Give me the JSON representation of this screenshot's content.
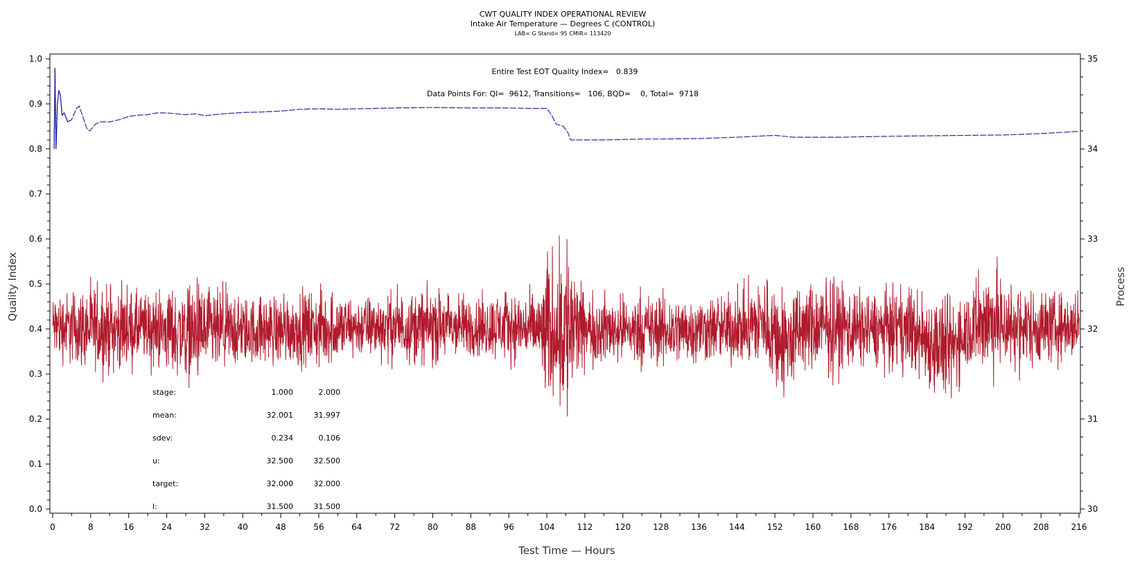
{
  "chart_data": {
    "type": "line",
    "title": "CWT QUALITY INDEX OPERATIONAL REVIEW",
    "subtitle": "Intake Air Temperature — Degrees C (CONTROL)",
    "subsubtitle": "LAB= G Stand= 95 CMIR= 113420",
    "annotation_qi": "Entire Test EOT Quality Index=   0.839",
    "annotation_points": "Data Points For: QI=  9612, Transitions=   106, BQD=    0, Total=  9718",
    "xlabel": "Test Time — Hours",
    "ylabel": "Quality Index",
    "y2label": "Process",
    "xlim": [
      0,
      216
    ],
    "ylim": [
      0,
      1.0
    ],
    "y2lim": [
      30,
      35
    ],
    "xticks": [
      "0",
      "8",
      "16",
      "24",
      "32",
      "40",
      "48",
      "56",
      "64",
      "72",
      "80",
      "88",
      "96",
      "104",
      "112",
      "120",
      "128",
      "136",
      "144",
      "152",
      "160",
      "168",
      "176",
      "184",
      "192",
      "200",
      "208",
      "216"
    ],
    "yticks": [
      "0.0",
      "0.1",
      "0.2",
      "0.3",
      "0.4",
      "0.5",
      "0.6",
      "0.7",
      "0.8",
      "0.9",
      "1.0"
    ],
    "y2ticks": [
      "30",
      "31",
      "32",
      "33",
      "34",
      "35"
    ],
    "colors": {
      "quality_index": "#2a2aa6",
      "process": "#b01a2c"
    },
    "series": [
      {
        "name": "Quality Index",
        "axis": "left",
        "style": "dashed",
        "points": [
          [
            0.3,
            0.8
          ],
          [
            0.5,
            0.98
          ],
          [
            0.7,
            0.8
          ],
          [
            1.0,
            0.9
          ],
          [
            1.3,
            0.93
          ],
          [
            1.6,
            0.92
          ],
          [
            2.0,
            0.875
          ],
          [
            2.4,
            0.88
          ],
          [
            2.8,
            0.87
          ],
          [
            3.2,
            0.86
          ],
          [
            4.0,
            0.865
          ],
          [
            5.0,
            0.89
          ],
          [
            5.6,
            0.895
          ],
          [
            6.4,
            0.87
          ],
          [
            7.2,
            0.845
          ],
          [
            7.8,
            0.84
          ],
          [
            9,
            0.855
          ],
          [
            10,
            0.86
          ],
          [
            12,
            0.86
          ],
          [
            14,
            0.865
          ],
          [
            16,
            0.872
          ],
          [
            18,
            0.875
          ],
          [
            20,
            0.876
          ],
          [
            22,
            0.88
          ],
          [
            24,
            0.88
          ],
          [
            26,
            0.878
          ],
          [
            28,
            0.876
          ],
          [
            30,
            0.878
          ],
          [
            32,
            0.874
          ],
          [
            36,
            0.878
          ],
          [
            40,
            0.881
          ],
          [
            44,
            0.882
          ],
          [
            48,
            0.884
          ],
          [
            52,
            0.888
          ],
          [
            56,
            0.889
          ],
          [
            60,
            0.888
          ],
          [
            64,
            0.889
          ],
          [
            68,
            0.89
          ],
          [
            72,
            0.891
          ],
          [
            80,
            0.892
          ],
          [
            88,
            0.891
          ],
          [
            96,
            0.891
          ],
          [
            100,
            0.89
          ],
          [
            104,
            0.89
          ],
          [
            105,
            0.875
          ],
          [
            106,
            0.855
          ],
          [
            107.5,
            0.85
          ],
          [
            108.5,
            0.835
          ],
          [
            109,
            0.82
          ],
          [
            112,
            0.82
          ],
          [
            116,
            0.82
          ],
          [
            120,
            0.821
          ],
          [
            124,
            0.822
          ],
          [
            128,
            0.822
          ],
          [
            136,
            0.823
          ],
          [
            144,
            0.826
          ],
          [
            150,
            0.829
          ],
          [
            152,
            0.83
          ],
          [
            156,
            0.826
          ],
          [
            160,
            0.826
          ],
          [
            166,
            0.826
          ],
          [
            170,
            0.827
          ],
          [
            176,
            0.828
          ],
          [
            184,
            0.829
          ],
          [
            192,
            0.83
          ],
          [
            200,
            0.831
          ],
          [
            208,
            0.834
          ],
          [
            216,
            0.839
          ]
        ]
      },
      {
        "name": "Process",
        "axis": "right",
        "style": "solid",
        "n_points": 9718,
        "envelope_note": "hour, min, max of process value",
        "envelope": [
          [
            0,
            31.55,
            32.5
          ],
          [
            10,
            31.4,
            32.6
          ],
          [
            20,
            31.5,
            32.5
          ],
          [
            30,
            31.25,
            32.65
          ],
          [
            40,
            31.5,
            32.45
          ],
          [
            50,
            31.5,
            32.5
          ],
          [
            56,
            31.45,
            32.55
          ],
          [
            64,
            31.6,
            32.45
          ],
          [
            72,
            31.55,
            32.5
          ],
          [
            80,
            31.5,
            32.55
          ],
          [
            88,
            31.6,
            32.45
          ],
          [
            96,
            31.55,
            32.5
          ],
          [
            102,
            31.5,
            32.5
          ],
          [
            104,
            30.85,
            32.95
          ],
          [
            106,
            31.2,
            32.9
          ],
          [
            108,
            30.4,
            33.6
          ],
          [
            110,
            31.2,
            32.8
          ],
          [
            112,
            31.5,
            32.5
          ],
          [
            120,
            31.55,
            32.45
          ],
          [
            128,
            31.45,
            32.5
          ],
          [
            136,
            31.55,
            32.45
          ],
          [
            144,
            31.5,
            32.5
          ],
          [
            150,
            31.4,
            32.75
          ],
          [
            154,
            31.05,
            32.6
          ],
          [
            158,
            31.4,
            32.6
          ],
          [
            164,
            31.35,
            32.7
          ],
          [
            172,
            31.5,
            32.5
          ],
          [
            180,
            31.4,
            32.6
          ],
          [
            189,
            31.0,
            32.5
          ],
          [
            192,
            31.45,
            32.55
          ],
          [
            197,
            31.3,
            32.9
          ],
          [
            202,
            31.4,
            32.65
          ],
          [
            208,
            31.5,
            32.55
          ],
          [
            216,
            31.6,
            32.45
          ]
        ]
      }
    ],
    "stats_table": {
      "rows": [
        {
          "label": "stage:",
          "v1": "1.000",
          "v2": "2.000"
        },
        {
          "label": "mean:",
          "v1": "32.001",
          "v2": "31.997"
        },
        {
          "label": "sdev:",
          "v1": "0.234",
          "v2": "0.106"
        },
        {
          "label": "u:",
          "v1": "32.500",
          "v2": "32.500"
        },
        {
          "label": "target:",
          "v1": "32.000",
          "v2": "32.000"
        },
        {
          "label": "l:",
          "v1": "31.500",
          "v2": "31.500"
        }
      ]
    }
  }
}
